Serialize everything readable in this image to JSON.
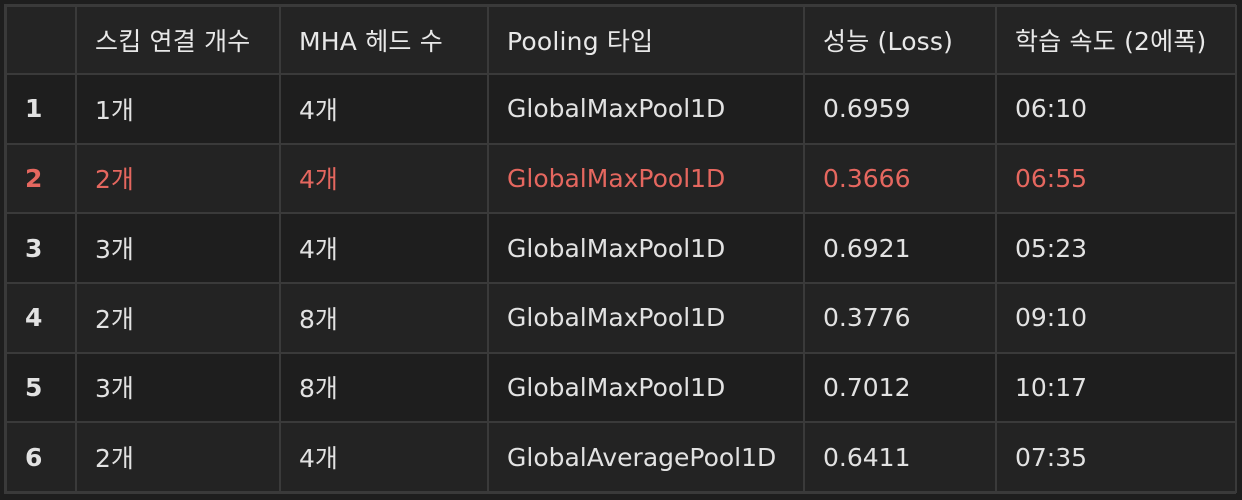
{
  "table": {
    "headers": [
      "",
      "스킵 연결 개수",
      "MHA 헤드 수",
      "Pooling 타입",
      "성능 (Loss)",
      "학습 속도 (2에폭)"
    ],
    "rows": [
      {
        "idx": "1",
        "skip": "1개",
        "heads": "4개",
        "pooling": "GlobalMaxPool1D",
        "loss": "0.6959",
        "speed": "06:10",
        "highlight": false
      },
      {
        "idx": "2",
        "skip": "2개",
        "heads": "4개",
        "pooling": "GlobalMaxPool1D",
        "loss": "0.3666",
        "speed": "06:55",
        "highlight": true
      },
      {
        "idx": "3",
        "skip": "3개",
        "heads": "4개",
        "pooling": "GlobalMaxPool1D",
        "loss": "0.6921",
        "speed": "05:23",
        "highlight": false
      },
      {
        "idx": "4",
        "skip": "2개",
        "heads": "8개",
        "pooling": "GlobalMaxPool1D",
        "loss": "0.3776",
        "speed": "09:10",
        "highlight": false
      },
      {
        "idx": "5",
        "skip": "3개",
        "heads": "8개",
        "pooling": "GlobalMaxPool1D",
        "loss": "0.7012",
        "speed": "10:17",
        "highlight": false
      },
      {
        "idx": "6",
        "skip": "2개",
        "heads": "4개",
        "pooling": "GlobalAveragePool1D",
        "loss": "0.6411",
        "speed": "07:35",
        "highlight": false
      }
    ]
  },
  "colors": {
    "background": "#1e1e1e",
    "border": "#3a3a3a",
    "text": "#e2e2e2",
    "highlight": "#e5675f"
  }
}
